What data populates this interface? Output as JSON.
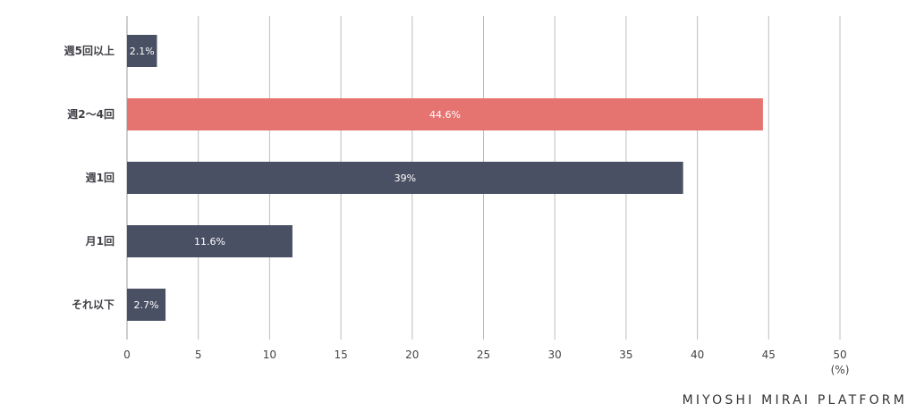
{
  "chart_data": {
    "type": "bar",
    "orientation": "horizontal",
    "categories": [
      "週5回以上",
      "週2〜4回",
      "週1回",
      "月1回",
      "それ以下"
    ],
    "values": [
      2.1,
      44.6,
      39,
      11.6,
      2.7
    ],
    "data_labels": [
      "2.1%",
      "44.6%",
      "39%",
      "11.6%",
      "2.7%"
    ],
    "colors": [
      "#4a5063",
      "#e57370",
      "#4a5063",
      "#4a5063",
      "#4a5063"
    ],
    "xlim": [
      0,
      50
    ],
    "x_ticks": [
      0,
      5,
      10,
      15,
      20,
      25,
      30,
      35,
      40,
      45,
      50
    ],
    "x_unit": "(%)",
    "grid": "vertical",
    "legend": "none"
  },
  "branding": {
    "watermark": "MIYOSHI MIRAI PLATFORM"
  },
  "colors": {
    "bar_default": "#4a5063",
    "bar_highlight": "#e57370",
    "grid": "#bdbdbd"
  }
}
